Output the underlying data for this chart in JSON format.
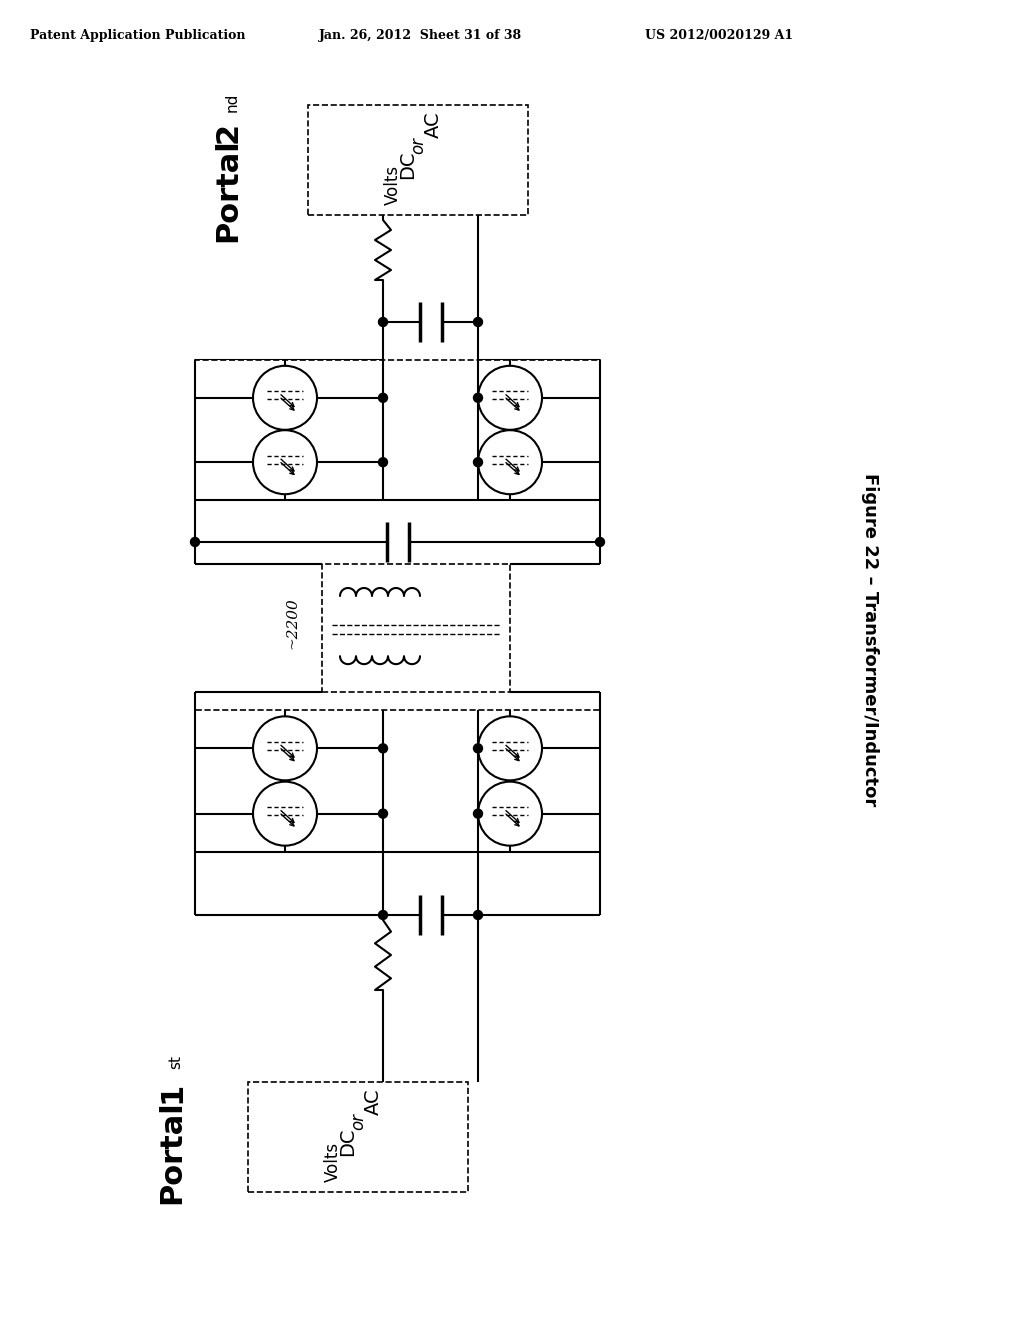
{
  "bg_color": "#ffffff",
  "line_color": "#000000",
  "header_left": "Patent Application Publication",
  "header_center": "Jan. 26, 2012  Sheet 31 of 38",
  "header_right": "US 2012/0020129 A1",
  "fig_label": "Figure 22 – Transformer/Inductor",
  "portal2_num": "2",
  "portal2_sup": "nd",
  "portal2_word": "Portal",
  "portal1_num": "1",
  "portal1_sup": "st",
  "portal1_word": "Portal",
  "transformer_label": "~2200",
  "box_text": [
    "AC",
    "or",
    "DC",
    "Volts"
  ],
  "lw": 1.5,
  "dot_r": 4.5,
  "tr_r": 32
}
